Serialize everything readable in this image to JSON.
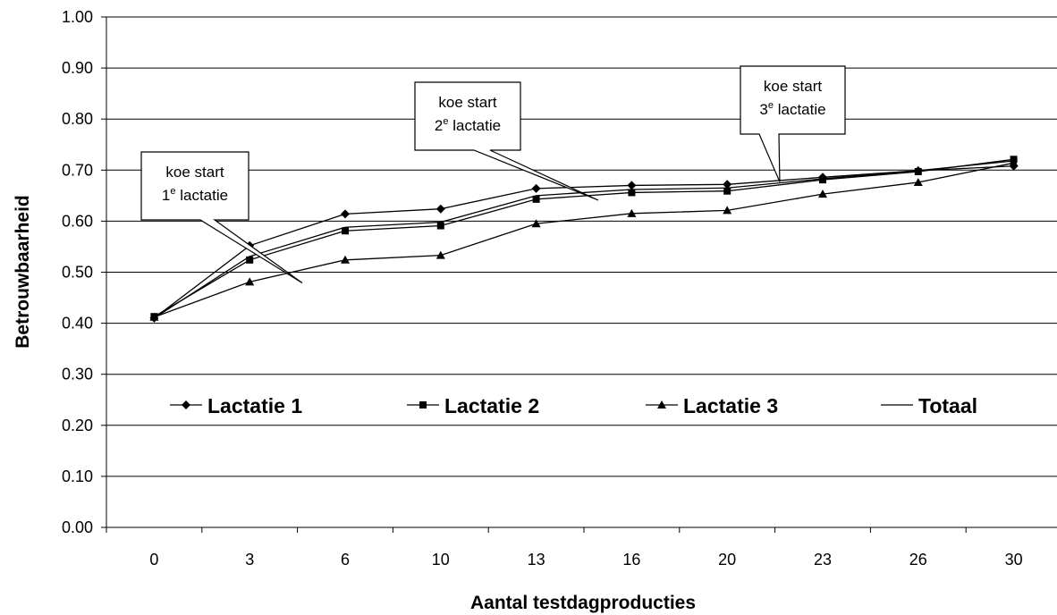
{
  "chart_data": {
    "type": "line",
    "title": "",
    "xlabel": "Aantal testdagproducties",
    "ylabel": "Betrouwbaarheid",
    "categories": [
      "0",
      "3",
      "6",
      "10",
      "13",
      "16",
      "20",
      "23",
      "26",
      "30"
    ],
    "y_ticks": [
      "0.00",
      "0.10",
      "0.20",
      "0.30",
      "0.40",
      "0.50",
      "0.60",
      "0.70",
      "0.80",
      "0.90",
      "1.00"
    ],
    "ylim": [
      0,
      1
    ],
    "grid": "horizontal",
    "legend_position": "inside-lower-middle",
    "series": [
      {
        "name": "Lactatie 1",
        "marker": "diamond",
        "values": [
          0.41,
          0.552,
          0.614,
          0.624,
          0.664,
          0.67,
          0.672,
          0.686,
          0.699,
          0.708
        ]
      },
      {
        "name": "Lactatie 2",
        "marker": "square",
        "values": [
          0.413,
          0.524,
          0.581,
          0.591,
          0.643,
          0.656,
          0.659,
          0.681,
          0.697,
          0.721
        ]
      },
      {
        "name": "Lactatie 3",
        "marker": "triangle",
        "values": [
          0.412,
          0.481,
          0.524,
          0.533,
          0.595,
          0.615,
          0.621,
          0.653,
          0.676,
          0.714
        ]
      },
      {
        "name": "Totaal",
        "marker": "none",
        "values": [
          0.41,
          0.531,
          0.588,
          0.598,
          0.65,
          0.662,
          0.665,
          0.683,
          0.699,
          0.718
        ]
      }
    ],
    "annotations": [
      {
        "line1": "koe start",
        "num": "1",
        "sup": "e",
        "word": " lactatie",
        "x": 1.55,
        "y": 0.479
      },
      {
        "line1": "koe start",
        "num": "2",
        "sup": "e",
        "word": " lactatie",
        "x": 4.65,
        "y": 0.641
      },
      {
        "line1": "koe start",
        "num": "3",
        "sup": "e",
        "word": " lactatie",
        "x": 6.55,
        "y": 0.677
      }
    ]
  }
}
